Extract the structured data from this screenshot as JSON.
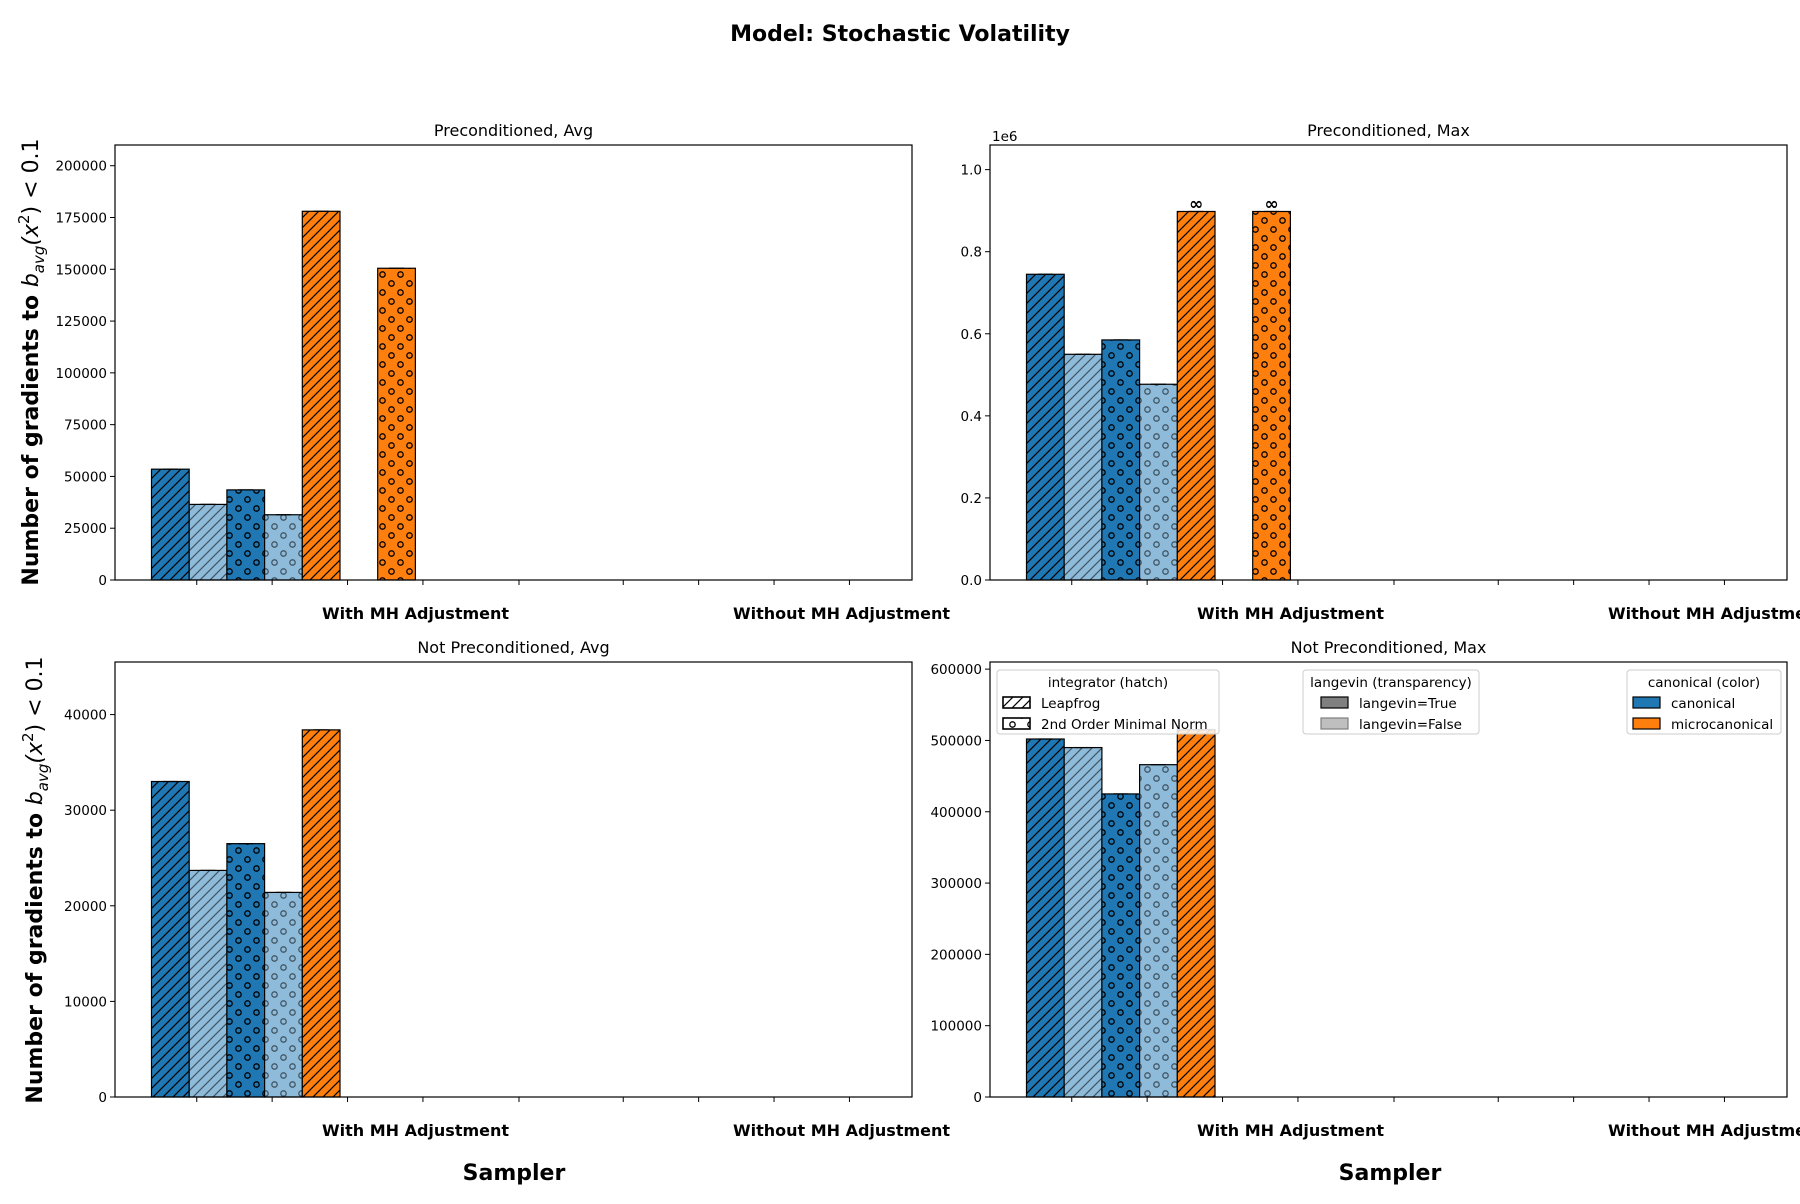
{
  "suptitle": "Model: Stochastic Volatility",
  "ylabel_plain": "Number of gradients to ",
  "ylabel_math_b": "b",
  "ylabel_math_sub": "avg",
  "ylabel_math_rest1": "(x",
  "ylabel_math_sup": "2",
  "ylabel_math_rest2": ") < 0.1",
  "xlabel": "Sampler",
  "categories": [
    "With MH Adjustment",
    "Without MH Adjustment"
  ],
  "colors": {
    "canonical": "#1f77b4",
    "microcanonical": "#ff7f0e"
  },
  "legend": {
    "integrator": {
      "title": "integrator (hatch)",
      "items": [
        "Leapfrog",
        "2nd Order Minimal Norm"
      ]
    },
    "langevin": {
      "title": "langevin (transparency)",
      "items": [
        "langevin=True",
        "langevin=False"
      ]
    },
    "canonical": {
      "title": "canonical (color)",
      "items": [
        "canonical",
        "microcanonical"
      ]
    }
  },
  "chart_data": [
    {
      "type": "bar",
      "title": "Preconditioned, Avg",
      "ylim": [
        0,
        210000
      ],
      "yticks": [
        0,
        25000,
        50000,
        75000,
        100000,
        125000,
        150000,
        175000,
        200000
      ],
      "ytick_labels": [
        "0",
        "25000",
        "50000",
        "75000",
        "100000",
        "125000",
        "150000",
        "175000",
        "200000"
      ],
      "scale_label": "",
      "categories": [
        "With MH Adjustment",
        "Without MH Adjustment"
      ],
      "series": [
        {
          "canonical": true,
          "langevin": true,
          "integrator": "Leapfrog",
          "values": [
            53500,
            0
          ]
        },
        {
          "canonical": true,
          "langevin": false,
          "integrator": "Leapfrog",
          "values": [
            36500,
            0
          ]
        },
        {
          "canonical": true,
          "langevin": true,
          "integrator": "2nd Order Minimal Norm",
          "values": [
            43500,
            0
          ]
        },
        {
          "canonical": true,
          "langevin": false,
          "integrator": "2nd Order Minimal Norm",
          "values": [
            31500,
            0
          ]
        },
        {
          "canonical": false,
          "langevin": true,
          "integrator": "Leapfrog",
          "values": [
            178000,
            0
          ]
        },
        {
          "canonical": false,
          "langevin": false,
          "integrator": "Leapfrog",
          "values": [
            0,
            0
          ]
        },
        {
          "canonical": false,
          "langevin": true,
          "integrator": "2nd Order Minimal Norm",
          "values": [
            150500,
            0
          ]
        },
        {
          "canonical": false,
          "langevin": false,
          "integrator": "2nd Order Minimal Norm",
          "values": [
            0,
            0
          ]
        }
      ],
      "infinite_marks": []
    },
    {
      "type": "bar",
      "title": "Preconditioned, Max",
      "ylim": [
        0,
        1060000
      ],
      "yticks": [
        0,
        200000,
        400000,
        600000,
        800000,
        1000000
      ],
      "ytick_labels": [
        "0.0",
        "0.2",
        "0.4",
        "0.6",
        "0.8",
        "1.0"
      ],
      "scale_label": "1e6",
      "categories": [
        "With MH Adjustment",
        "Without MH Adjustment"
      ],
      "series": [
        {
          "canonical": true,
          "langevin": true,
          "integrator": "Leapfrog",
          "values": [
            745000,
            0
          ]
        },
        {
          "canonical": true,
          "langevin": false,
          "integrator": "Leapfrog",
          "values": [
            550000,
            0
          ]
        },
        {
          "canonical": true,
          "langevin": true,
          "integrator": "2nd Order Minimal Norm",
          "values": [
            585000,
            0
          ]
        },
        {
          "canonical": true,
          "langevin": false,
          "integrator": "2nd Order Minimal Norm",
          "values": [
            477000,
            0
          ]
        },
        {
          "canonical": false,
          "langevin": true,
          "integrator": "Leapfrog",
          "values": [
            898000,
            0
          ]
        },
        {
          "canonical": false,
          "langevin": false,
          "integrator": "Leapfrog",
          "values": [
            0,
            0
          ]
        },
        {
          "canonical": false,
          "langevin": true,
          "integrator": "2nd Order Minimal Norm",
          "values": [
            898000,
            0
          ]
        },
        {
          "canonical": false,
          "langevin": false,
          "integrator": "2nd Order Minimal Norm",
          "values": [
            0,
            0
          ]
        }
      ],
      "infinite_symbol": "∞",
      "infinite_marks": [
        [
          0,
          4
        ],
        [
          0,
          6
        ]
      ]
    },
    {
      "type": "bar",
      "title": "Not Preconditioned, Avg",
      "ylim": [
        0,
        45500
      ],
      "yticks": [
        0,
        10000,
        20000,
        30000,
        40000
      ],
      "ytick_labels": [
        "0",
        "10000",
        "20000",
        "30000",
        "40000"
      ],
      "scale_label": "",
      "categories": [
        "With MH Adjustment",
        "Without MH Adjustment"
      ],
      "series": [
        {
          "canonical": true,
          "langevin": true,
          "integrator": "Leapfrog",
          "values": [
            33000,
            0
          ]
        },
        {
          "canonical": true,
          "langevin": false,
          "integrator": "Leapfrog",
          "values": [
            23700,
            0
          ]
        },
        {
          "canonical": true,
          "langevin": true,
          "integrator": "2nd Order Minimal Norm",
          "values": [
            26500,
            0
          ]
        },
        {
          "canonical": true,
          "langevin": false,
          "integrator": "2nd Order Minimal Norm",
          "values": [
            21400,
            0
          ]
        },
        {
          "canonical": false,
          "langevin": true,
          "integrator": "Leapfrog",
          "values": [
            38400,
            0
          ]
        },
        {
          "canonical": false,
          "langevin": false,
          "integrator": "Leapfrog",
          "values": [
            0,
            0
          ]
        },
        {
          "canonical": false,
          "langevin": true,
          "integrator": "2nd Order Minimal Norm",
          "values": [
            0,
            0
          ]
        },
        {
          "canonical": false,
          "langevin": false,
          "integrator": "2nd Order Minimal Norm",
          "values": [
            0,
            0
          ]
        }
      ],
      "infinite_marks": []
    },
    {
      "type": "bar",
      "title": "Not Preconditioned, Max",
      "ylim": [
        0,
        610000
      ],
      "yticks": [
        0,
        100000,
        200000,
        300000,
        400000,
        500000,
        600000
      ],
      "ytick_labels": [
        "0",
        "100000",
        "200000",
        "300000",
        "400000",
        "500000",
        "600000"
      ],
      "scale_label": "",
      "categories": [
        "With MH Adjustment",
        "Without MH Adjustment"
      ],
      "series": [
        {
          "canonical": true,
          "langevin": true,
          "integrator": "Leapfrog",
          "values": [
            502000,
            0
          ]
        },
        {
          "canonical": true,
          "langevin": false,
          "integrator": "Leapfrog",
          "values": [
            490000,
            0
          ]
        },
        {
          "canonical": true,
          "langevin": true,
          "integrator": "2nd Order Minimal Norm",
          "values": [
            425000,
            0
          ]
        },
        {
          "canonical": true,
          "langevin": false,
          "integrator": "2nd Order Minimal Norm",
          "values": [
            466000,
            0
          ]
        },
        {
          "canonical": false,
          "langevin": true,
          "integrator": "Leapfrog",
          "values": [
            515000,
            0
          ]
        },
        {
          "canonical": false,
          "langevin": false,
          "integrator": "Leapfrog",
          "values": [
            0,
            0
          ]
        },
        {
          "canonical": false,
          "langevin": true,
          "integrator": "2nd Order Minimal Norm",
          "values": [
            0,
            0
          ]
        },
        {
          "canonical": false,
          "langevin": false,
          "integrator": "2nd Order Minimal Norm",
          "values": [
            0,
            0
          ]
        }
      ],
      "infinite_marks": []
    }
  ]
}
